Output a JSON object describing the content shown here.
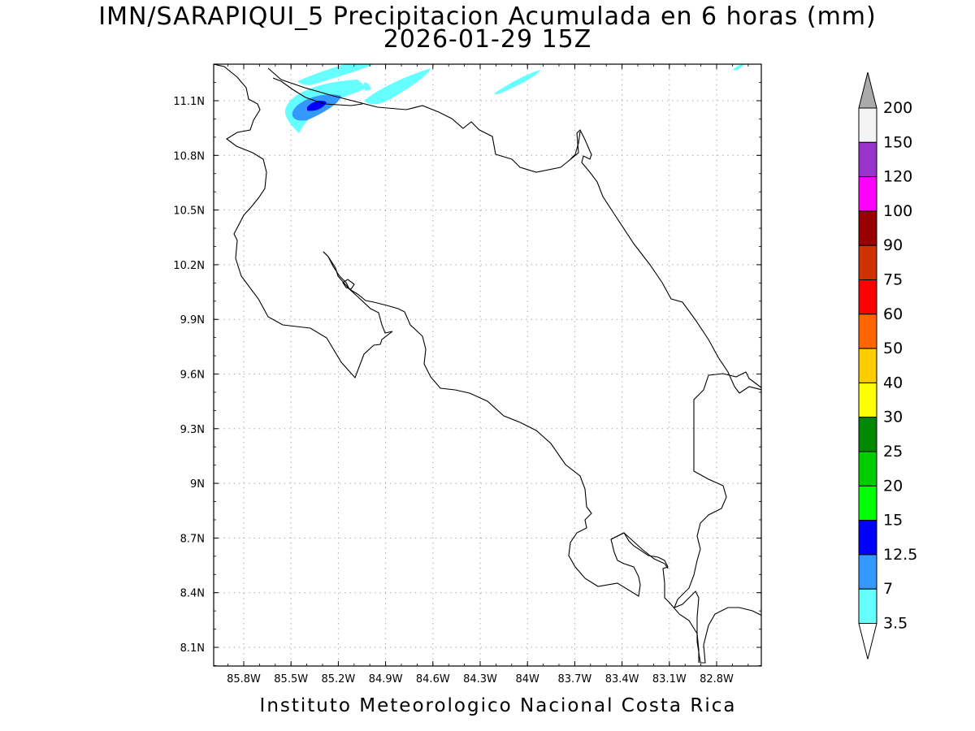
{
  "titles": {
    "line1": "IMN/SARAPIQUI_5 Precipitacion Acumulada en 6 horas (mm)",
    "line2": "2026-01-29 15Z"
  },
  "credit": "Instituto Meteorologico Nacional Costa Rica",
  "axes": {
    "lon_range": [
      -86.13,
      -83.8
    ],
    "lat_range": [
      8.0,
      11.3
    ],
    "x_ticks": [
      "85.8W",
      "85.5W",
      "85.2W",
      "84.9W",
      "84.6W",
      "84.3W",
      "84W",
      "83.7W",
      "83.4W",
      "83.1W",
      "82.8W"
    ],
    "y_ticks": [
      "11.1N",
      "10.8N",
      "10.5N",
      "10.2N",
      "9.9N",
      "9.6N",
      "9.3N",
      "9N",
      "8.7N",
      "8.4N",
      "8.1N"
    ],
    "grid": "dotted"
  },
  "colorbar": {
    "levels": [
      "200",
      "150",
      "120",
      "100",
      "90",
      "75",
      "60",
      "50",
      "40",
      "30",
      "25",
      "20",
      "15",
      "12.5",
      "7",
      "3.5"
    ],
    "colors": [
      "#f4f4f4",
      "#9933cc",
      "#ff00ff",
      "#990000",
      "#cc3300",
      "#ff0000",
      "#ff6600",
      "#ffcc00",
      "#ffff00",
      "#008800",
      "#00cc00",
      "#00ff00",
      "#0000ff",
      "#3399ff",
      "#66ffff"
    ],
    "top_arrow_color": "#aaaaaa",
    "bottom_arrow_color": "#ffffff"
  },
  "precip_colors": {
    "light": "#66ffff",
    "moderate": "#3399ff",
    "heavy": "#0000ff"
  }
}
